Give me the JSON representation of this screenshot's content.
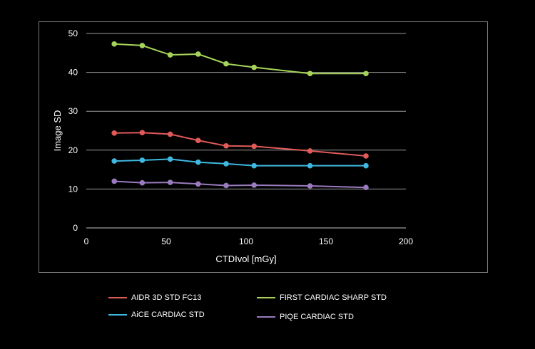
{
  "chart_data": {
    "type": "line",
    "title": "",
    "xlabel": "CTDIvol [mGy]",
    "ylabel": "Image SD",
    "xlim": [
      0,
      200
    ],
    "ylim": [
      0,
      50
    ],
    "xticks": [
      0,
      50,
      100,
      150,
      200
    ],
    "yticks": [
      0,
      10,
      20,
      30,
      40,
      50
    ],
    "grid": "horizontal",
    "legend_position": "bottom",
    "series": [
      {
        "name": "FIRST CARDIAC SHARP STD",
        "color": "#a6d45a",
        "x": [
          17.5,
          35,
          52.5,
          70,
          87.5,
          105,
          140,
          175
        ],
        "y": [
          47.3,
          46.9,
          44.5,
          44.7,
          42.2,
          41.3,
          39.7,
          39.7
        ]
      },
      {
        "name": "AIDR 3D STD FC13",
        "color": "#e05a5a",
        "x": [
          17.5,
          35,
          52.5,
          70,
          87.5,
          105,
          140,
          175
        ],
        "y": [
          24.4,
          24.5,
          24.1,
          22.5,
          21.1,
          21.0,
          19.8,
          18.5
        ]
      },
      {
        "name": "AiCE CARDIAC STD",
        "color": "#3fb8e0",
        "x": [
          17.5,
          35,
          52.5,
          70,
          87.5,
          105,
          140,
          175
        ],
        "y": [
          17.2,
          17.4,
          17.7,
          16.9,
          16.5,
          16.0,
          16.0,
          16.0
        ]
      },
      {
        "name": "PIQE CARDIAC STD",
        "color": "#9b7bbf",
        "x": [
          17.5,
          35,
          52.5,
          70,
          87.5,
          105,
          140,
          175
        ],
        "y": [
          12.0,
          11.6,
          11.7,
          11.3,
          10.9,
          11.0,
          10.8,
          10.4
        ]
      }
    ]
  },
  "legend": [
    {
      "label": "AIDR 3D STD FC13",
      "color": "#e05a5a"
    },
    {
      "label": "FIRST CARDIAC SHARP STD",
      "color": "#a6d45a"
    },
    {
      "label": "AiCE CARDIAC STD",
      "color": "#3fb8e0"
    },
    {
      "label": "PIQE CARDIAC STD",
      "color": "#9b7bbf"
    }
  ]
}
